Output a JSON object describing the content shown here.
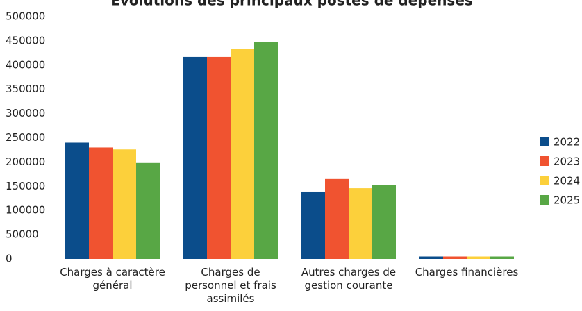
{
  "chart_data": {
    "type": "bar",
    "title": "Évolutions des principaux postes de dépenses",
    "categories": [
      "Charges à caractère général",
      "Charges de personnel et frais assimilés",
      "Autres charges de gestion courante",
      "Charges financières"
    ],
    "series": [
      {
        "name": "2022",
        "color": "#0b4d8b",
        "values": [
          240000,
          417000,
          139000,
          5000
        ]
      },
      {
        "name": "2023",
        "color": "#f05330",
        "values": [
          230000,
          417000,
          165000,
          5000
        ]
      },
      {
        "name": "2024",
        "color": "#fcd03b",
        "values": [
          226000,
          433000,
          146000,
          5000
        ]
      },
      {
        "name": "2025",
        "color": "#58a745",
        "values": [
          198000,
          447000,
          153000,
          5000
        ]
      }
    ],
    "ylim": [
      0,
      500000
    ],
    "yticks": [
      0,
      50000,
      100000,
      150000,
      200000,
      250000,
      300000,
      350000,
      400000,
      450000,
      500000
    ],
    "legend": "right"
  }
}
